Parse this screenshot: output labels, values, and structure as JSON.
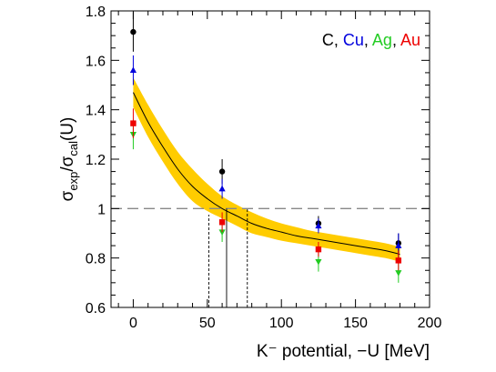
{
  "chart_data": {
    "type": "scatter",
    "xlabel": "K⁻ potential, −U [MeV]",
    "ylabel_main": "σ",
    "ylabel_sub1": "exp",
    "ylabel_mid": "/σ",
    "ylabel_sub2": "cal",
    "ylabel_end": "(U)",
    "xlim": [
      -15,
      200
    ],
    "ylim": [
      0.6,
      1.8
    ],
    "xticks": [
      "0",
      "50",
      "100",
      "150",
      "200"
    ],
    "yticks": [
      "0.6",
      "0.8",
      "1",
      "1.2",
      "1.4",
      "1.6",
      "1.8"
    ],
    "reference_line_y": 1.0,
    "legend": {
      "placement": "top-right",
      "entries": [
        {
          "label": "C",
          "color": "#000000"
        },
        {
          "label": "Cu",
          "color": "#0000dd"
        },
        {
          "label": "Ag",
          "color": "#22cc22"
        },
        {
          "label": "Au",
          "color": "#ee0000"
        }
      ],
      "separator": ", "
    },
    "fit_band": {
      "color": "#ffcc00",
      "x": [
        0,
        10,
        20,
        30,
        40,
        50,
        60,
        70,
        80,
        90,
        100,
        110,
        120,
        130,
        140,
        150,
        160,
        170,
        180
      ],
      "center": [
        1.47,
        1.35,
        1.25,
        1.16,
        1.09,
        1.04,
        1.0,
        0.97,
        0.94,
        0.92,
        0.905,
        0.89,
        0.88,
        0.87,
        0.86,
        0.85,
        0.84,
        0.83,
        0.815
      ],
      "upper": [
        1.53,
        1.42,
        1.32,
        1.23,
        1.16,
        1.1,
        1.05,
        1.015,
        0.985,
        0.96,
        0.94,
        0.925,
        0.91,
        0.9,
        0.89,
        0.88,
        0.87,
        0.86,
        0.845
      ],
      "lower": [
        1.41,
        1.29,
        1.19,
        1.1,
        1.03,
        0.99,
        0.96,
        0.93,
        0.9,
        0.885,
        0.87,
        0.86,
        0.85,
        0.84,
        0.83,
        0.82,
        0.81,
        0.8,
        0.785
      ]
    },
    "vertical_markers": [
      {
        "x": 51,
        "style": "dashed",
        "y_to": 0.975
      },
      {
        "x": 63,
        "style": "solid",
        "y_to": 1.0
      },
      {
        "x": 77,
        "style": "dashed",
        "y_to": 1.0
      }
    ],
    "series": [
      {
        "name": "C",
        "color": "#000000",
        "marker": "circle",
        "points": [
          [
            0,
            1.715,
            0.08
          ],
          [
            60,
            1.15,
            0.05
          ],
          [
            125,
            0.94,
            0.03
          ],
          [
            179,
            0.86,
            0.04
          ]
        ]
      },
      {
        "name": "Cu",
        "color": "#0000dd",
        "marker": "triangle-up",
        "points": [
          [
            0,
            1.56,
            0.06
          ],
          [
            60,
            1.08,
            0.04
          ],
          [
            125,
            0.93,
            0.03
          ],
          [
            179,
            0.85,
            0.05
          ]
        ]
      },
      {
        "name": "Ag",
        "color": "#22cc22",
        "marker": "triangle-down",
        "points": [
          [
            0,
            1.3,
            0.06
          ],
          [
            60,
            0.905,
            0.04
          ],
          [
            125,
            0.785,
            0.04
          ],
          [
            179,
            0.74,
            0.04
          ]
        ]
      },
      {
        "name": "Au",
        "color": "#ee0000",
        "marker": "square",
        "points": [
          [
            0,
            1.345,
            0.06
          ],
          [
            60,
            0.945,
            0.04
          ],
          [
            125,
            0.835,
            0.03
          ],
          [
            179,
            0.79,
            0.04
          ]
        ]
      }
    ]
  }
}
